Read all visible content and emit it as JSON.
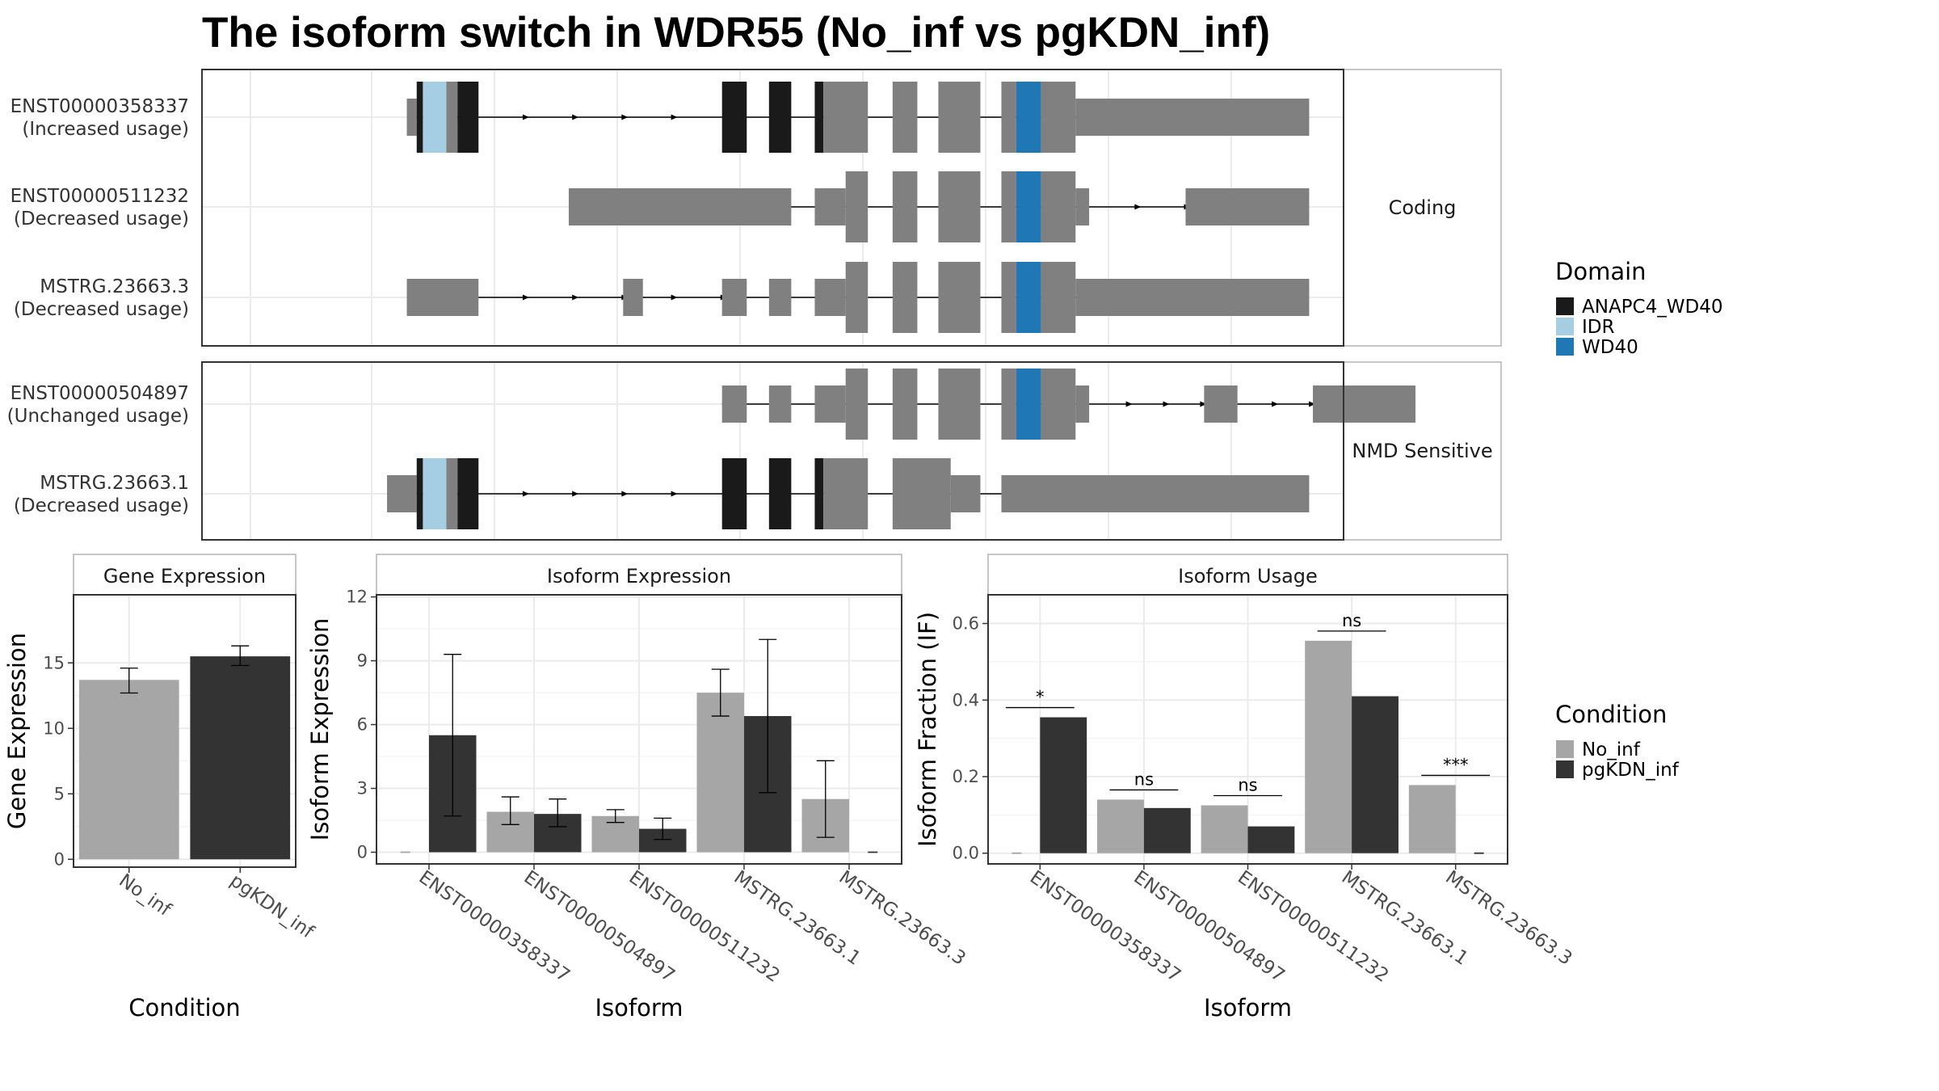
{
  "title": "The isoform switch in WDR55 (No_inf vs pgKDN_inf)",
  "colors": {
    "ANAPC4_WD40": "#1a1a1a",
    "IDR": "#a6cee3",
    "WD40": "#1f78b4",
    "exon": "#808080",
    "No_inf": "#a6a6a6",
    "pgKDN_inf": "#333333"
  },
  "structure": {
    "panels": [
      {
        "label": "Coding",
        "rows": [
          0,
          1,
          2
        ]
      },
      {
        "label": "NMD Sensitive",
        "rows": [
          3,
          4
        ]
      }
    ],
    "transcripts": [
      {
        "id": "ENST00000358337",
        "usage": "(Increased usage)",
        "intron": [
          218,
          948
        ],
        "arrows": [
          315,
          355,
          395,
          435
        ],
        "blocks": [
          [
            218,
            226,
            "utr",
            "exon"
          ],
          [
            226,
            231,
            "cds",
            "ANAPC4_WD40"
          ],
          [
            231,
            250,
            "cds",
            "IDR"
          ],
          [
            250,
            259,
            "cds",
            "exon"
          ],
          [
            259,
            276,
            "cds",
            "ANAPC4_WD40"
          ],
          [
            473,
            493,
            "cds",
            "ANAPC4_WD40"
          ],
          [
            511,
            529,
            "cds",
            "ANAPC4_WD40"
          ],
          [
            548,
            555,
            "cds",
            "ANAPC4_WD40"
          ],
          [
            555,
            591,
            "cds",
            "exon"
          ],
          [
            611,
            631,
            "cds",
            "exon"
          ],
          [
            648,
            682,
            "cds",
            "exon"
          ],
          [
            699,
            711,
            "cds",
            "exon"
          ],
          [
            711,
            731,
            "cds",
            "WD40"
          ],
          [
            731,
            759,
            "cds",
            "exon"
          ],
          [
            759,
            948,
            "utr",
            "exon"
          ]
        ]
      },
      {
        "id": "ENST00000511232",
        "usage": "(Decreased usage)",
        "intron": [
          349,
          948
        ],
        "arrows": [
          810,
          850
        ],
        "blocks": [
          [
            349,
            529,
            "utr",
            "exon"
          ],
          [
            548,
            573,
            "utr",
            "exon"
          ],
          [
            573,
            591,
            "cds",
            "exon"
          ],
          [
            611,
            631,
            "cds",
            "exon"
          ],
          [
            648,
            682,
            "cds",
            "exon"
          ],
          [
            699,
            711,
            "cds",
            "exon"
          ],
          [
            711,
            731,
            "cds",
            "WD40"
          ],
          [
            731,
            759,
            "cds",
            "exon"
          ],
          [
            759,
            770,
            "utr",
            "exon"
          ],
          [
            848,
            948,
            "utr",
            "exon"
          ]
        ]
      },
      {
        "id": "MSTRG.23663.3",
        "usage": "(Decreased usage)",
        "intron": [
          218,
          948
        ],
        "arrows": [
          315,
          355,
          395,
          435,
          475
        ],
        "blocks": [
          [
            218,
            276,
            "utr",
            "exon"
          ],
          [
            393,
            409,
            "utr",
            "exon"
          ],
          [
            473,
            493,
            "utr",
            "exon"
          ],
          [
            511,
            529,
            "utr",
            "exon"
          ],
          [
            548,
            573,
            "utr",
            "exon"
          ],
          [
            573,
            591,
            "cds",
            "exon"
          ],
          [
            611,
            631,
            "cds",
            "exon"
          ],
          [
            648,
            682,
            "cds",
            "exon"
          ],
          [
            699,
            711,
            "cds",
            "exon"
          ],
          [
            711,
            731,
            "cds",
            "WD40"
          ],
          [
            731,
            759,
            "cds",
            "exon"
          ],
          [
            759,
            948,
            "utr",
            "exon"
          ]
        ]
      },
      {
        "id": "ENST00000504897",
        "usage": "(Unchanged usage)",
        "intron": [
          473,
          1034
        ],
        "arrows": [
          803,
          833,
          863,
          921,
          951
        ],
        "blocks": [
          [
            473,
            493,
            "utr",
            "exon"
          ],
          [
            511,
            529,
            "utr",
            "exon"
          ],
          [
            548,
            573,
            "utr",
            "exon"
          ],
          [
            573,
            591,
            "cds",
            "exon"
          ],
          [
            611,
            631,
            "cds",
            "exon"
          ],
          [
            648,
            682,
            "cds",
            "exon"
          ],
          [
            699,
            711,
            "cds",
            "exon"
          ],
          [
            711,
            731,
            "cds",
            "WD40"
          ],
          [
            731,
            759,
            "cds",
            "exon"
          ],
          [
            759,
            770,
            "utr",
            "exon"
          ],
          [
            863,
            890,
            "utr",
            "exon"
          ],
          [
            951,
            1034,
            "utr",
            "exon"
          ]
        ]
      },
      {
        "id": "MSTRG.23663.1",
        "usage": "(Decreased usage)",
        "intron": [
          202,
          948
        ],
        "arrows": [
          315,
          355,
          395,
          435
        ],
        "blocks": [
          [
            202,
            226,
            "utr",
            "exon"
          ],
          [
            226,
            231,
            "cds",
            "ANAPC4_WD40"
          ],
          [
            231,
            250,
            "cds",
            "IDR"
          ],
          [
            250,
            259,
            "cds",
            "exon"
          ],
          [
            259,
            276,
            "cds",
            "ANAPC4_WD40"
          ],
          [
            473,
            493,
            "cds",
            "ANAPC4_WD40"
          ],
          [
            511,
            529,
            "cds",
            "ANAPC4_WD40"
          ],
          [
            548,
            555,
            "cds",
            "ANAPC4_WD40"
          ],
          [
            555,
            591,
            "cds",
            "exon"
          ],
          [
            611,
            658,
            "cds",
            "exon"
          ],
          [
            658,
            682,
            "utr",
            "exon"
          ],
          [
            699,
            948,
            "utr",
            "exon"
          ]
        ]
      }
    ]
  },
  "legend_domain": {
    "title": "Domain",
    "items": [
      {
        "label": "ANAPC4_WD40",
        "key": "ANAPC4_WD40"
      },
      {
        "label": "IDR",
        "key": "IDR"
      },
      {
        "label": "WD40",
        "key": "WD40"
      }
    ]
  },
  "legend_condition": {
    "title": "Condition",
    "items": [
      {
        "label": "No_inf",
        "key": "No_inf"
      },
      {
        "label": "pgKDN_inf",
        "key": "pgKDN_inf"
      }
    ]
  },
  "chart_data": [
    {
      "type": "bar",
      "panel_title": "Gene Expression",
      "xlabel": "Condition",
      "ylabel": "Gene Expression",
      "categories": [
        "No_inf",
        "pgKDN_inf"
      ],
      "values": [
        13.7,
        15.5
      ],
      "err_low": [
        12.7,
        14.8
      ],
      "err_high": [
        14.6,
        16.3
      ],
      "bar_colors": [
        "No_inf",
        "pgKDN_inf"
      ],
      "ylim": [
        -0.6,
        20.2
      ],
      "yticks": [
        0,
        5,
        10,
        15
      ]
    },
    {
      "type": "bar",
      "panel_title": "Isoform Expression",
      "xlabel": "Isoform",
      "ylabel": "Isoform Expression",
      "categories": [
        "ENST00000358337",
        "ENST00000504897",
        "ENST00000511232",
        "MSTRG.23663.1",
        "MSTRG.23663.3"
      ],
      "series": [
        {
          "name": "No_inf",
          "values": [
            0,
            1.9,
            1.7,
            7.5,
            2.5
          ],
          "err_low": [
            0,
            1.3,
            1.4,
            6.4,
            0.7
          ],
          "err_high": [
            0,
            2.6,
            2.0,
            8.6,
            4.3
          ]
        },
        {
          "name": "pgKDN_inf",
          "values": [
            5.5,
            1.8,
            1.1,
            6.4,
            0
          ],
          "err_low": [
            1.7,
            1.2,
            0.6,
            2.8,
            0
          ],
          "err_high": [
            9.3,
            2.5,
            1.6,
            10.0,
            0
          ]
        }
      ],
      "ylim": [
        -0.55,
        12.1
      ],
      "yticks": [
        0,
        3,
        6,
        9,
        12
      ]
    },
    {
      "type": "bar",
      "panel_title": "Isoform Usage",
      "xlabel": "Isoform",
      "ylabel": "Isoform Fraction (IF)",
      "categories": [
        "ENST00000358337",
        "ENST00000504897",
        "ENST00000511232",
        "MSTRG.23663.1",
        "MSTRG.23663.3"
      ],
      "series": [
        {
          "name": "No_inf",
          "values": [
            0,
            0.14,
            0.125,
            0.555,
            0.178
          ]
        },
        {
          "name": "pgKDN_inf",
          "values": [
            0.355,
            0.118,
            0.07,
            0.41,
            0
          ]
        }
      ],
      "significance": [
        "*",
        "ns",
        "ns",
        "ns",
        "***"
      ],
      "ylim": [
        -0.028,
        0.675
      ],
      "yticks": [
        0.0,
        0.2,
        0.4,
        0.6
      ]
    }
  ]
}
